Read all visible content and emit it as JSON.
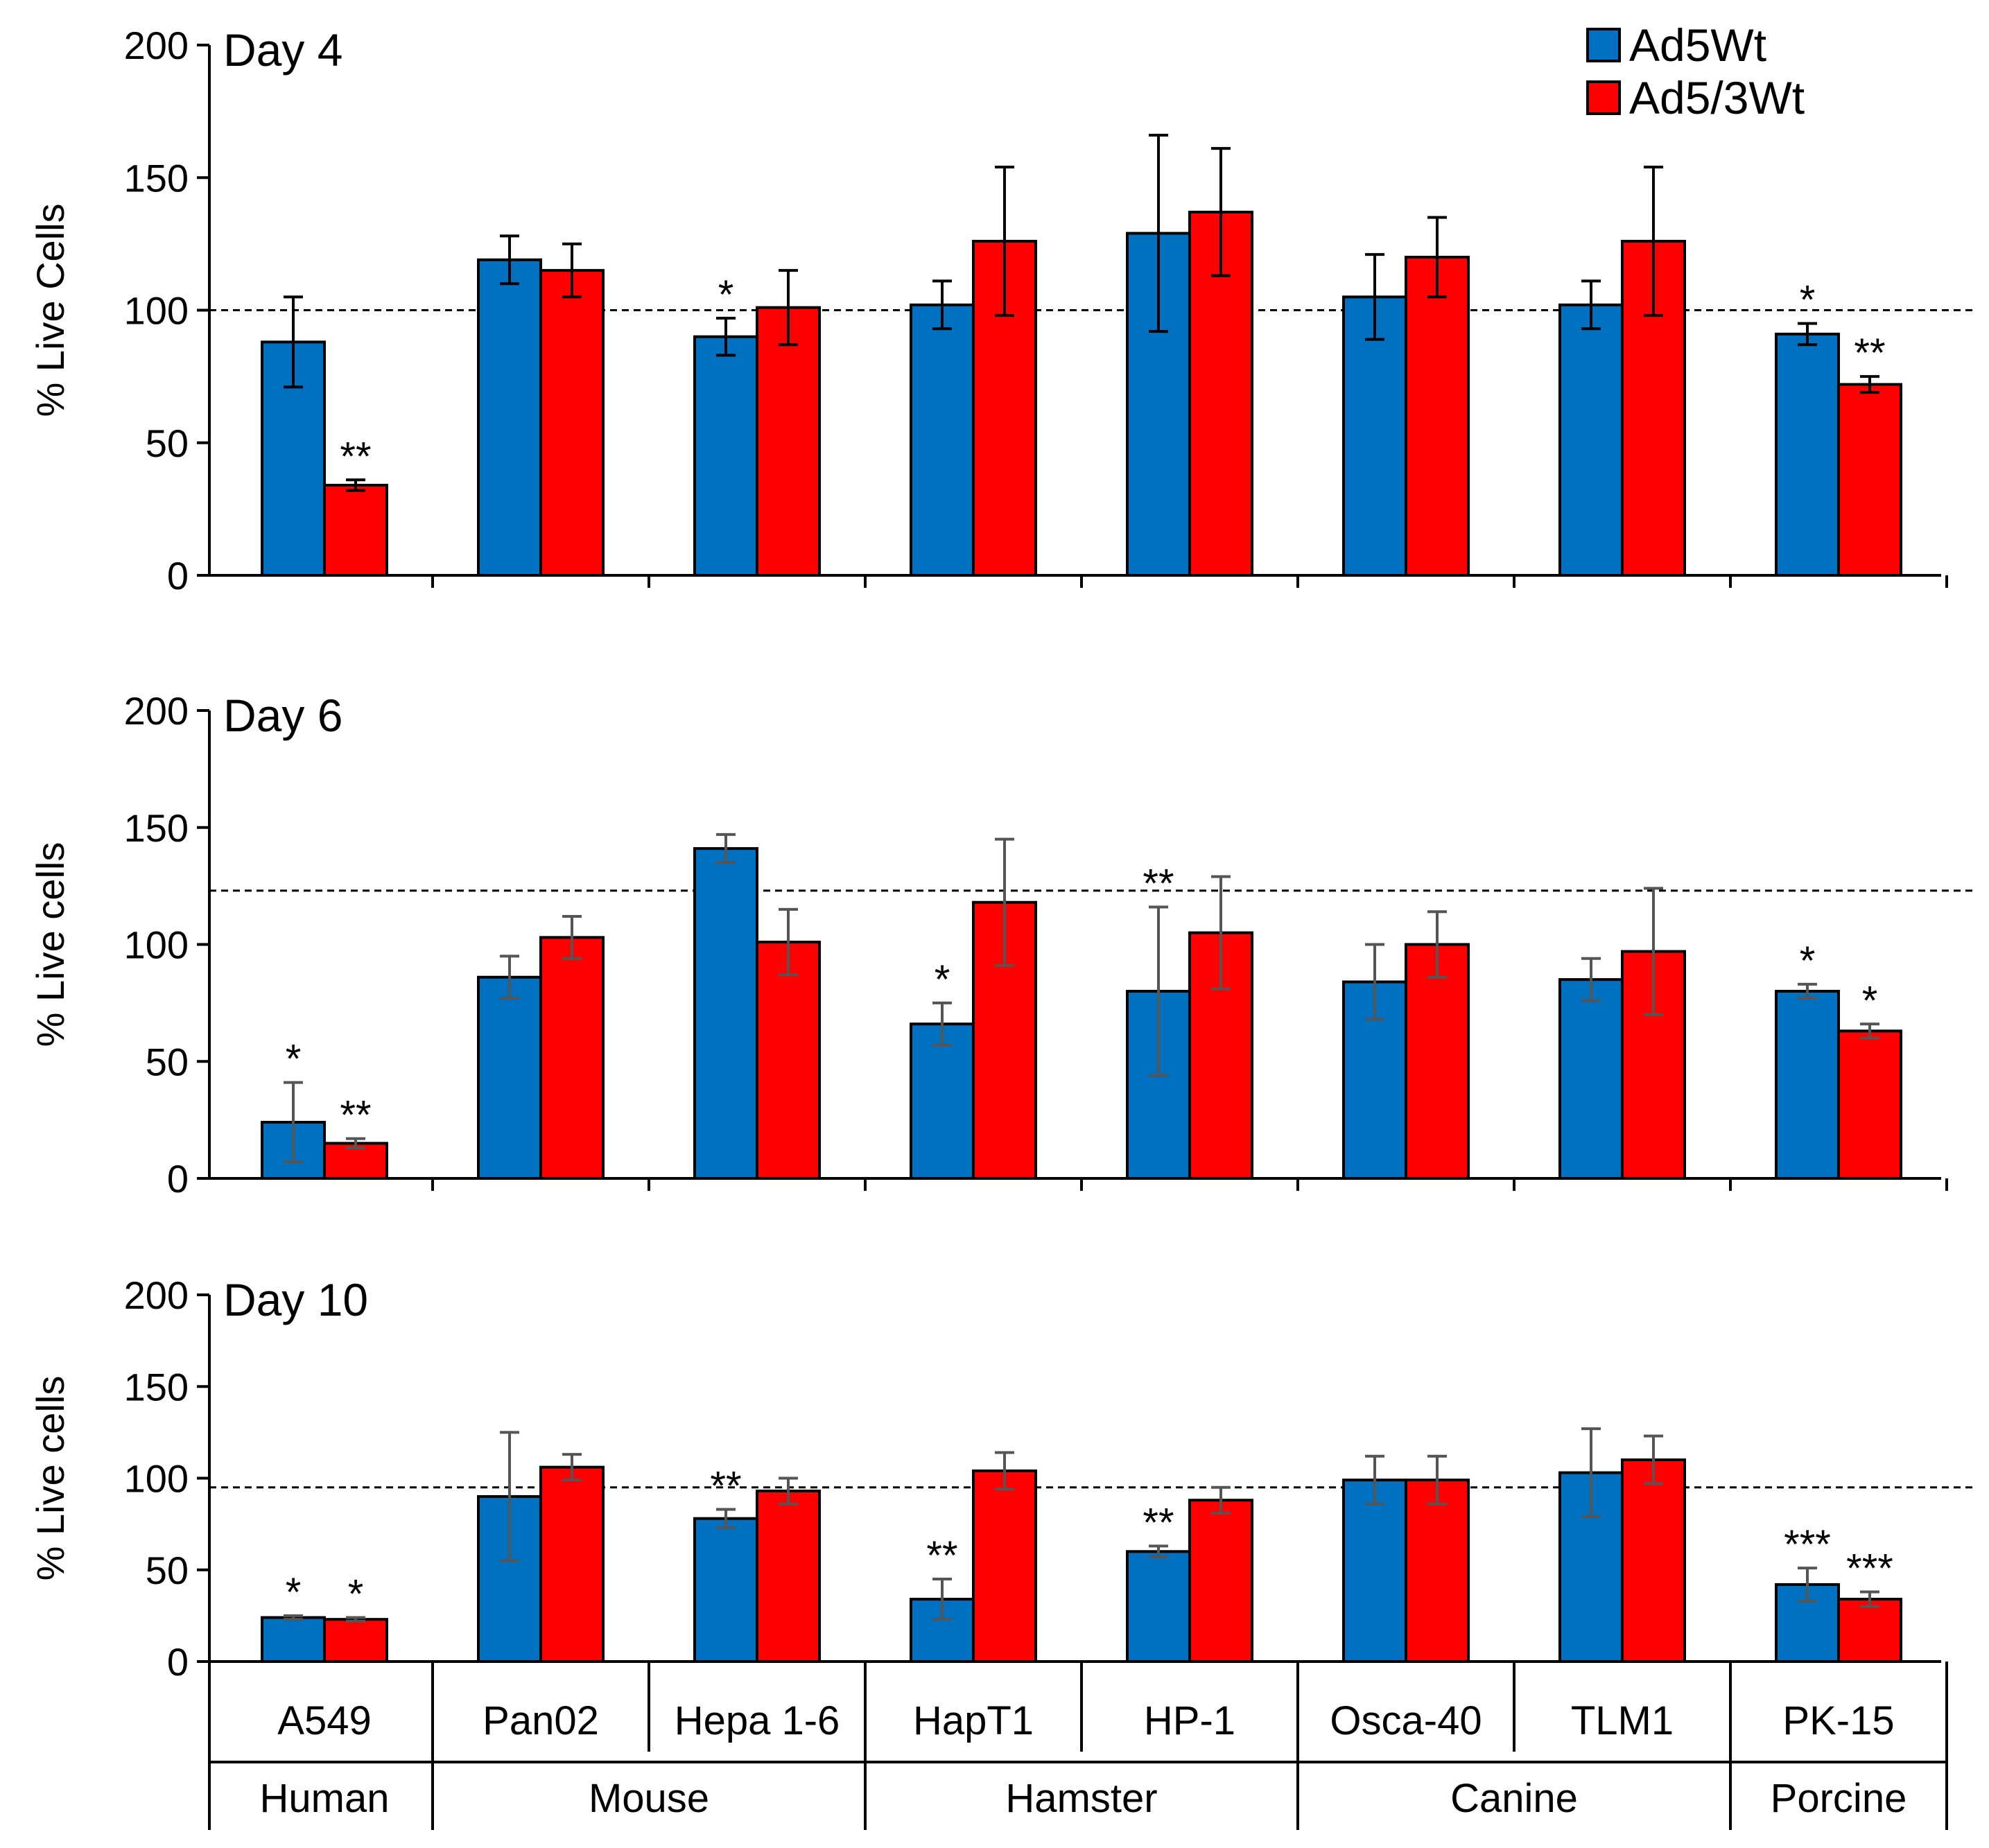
{
  "chart_data": {
    "type": "bar",
    "categories": [
      "A549",
      "Pan02",
      "Hepa 1-6",
      "HapT1",
      "HP-1",
      "Osca-40",
      "TLM1",
      "PK-15"
    ],
    "groups": [
      {
        "label": "Human",
        "span": [
          0,
          0
        ]
      },
      {
        "label": "Mouse",
        "span": [
          1,
          2
        ]
      },
      {
        "label": "Hamster",
        "span": [
          3,
          4
        ]
      },
      {
        "label": "Canine",
        "span": [
          5,
          6
        ]
      },
      {
        "label": "Porcine",
        "span": [
          7,
          7
        ]
      }
    ],
    "legend": [
      {
        "name": "Ad5Wt",
        "color": "#0070c0"
      },
      {
        "name": "Ad5/3Wt",
        "color": "#ff0000"
      }
    ],
    "panels": [
      {
        "title": "Day 4",
        "ylabel": "% Live Cells",
        "ylim": [
          0,
          200
        ],
        "yticks": [
          "0",
          "50",
          "100",
          "150",
          "200"
        ],
        "reference_line": 100,
        "error_bar_color": "#000000",
        "series": [
          {
            "name": "Ad5Wt",
            "values": [
              88,
              119,
              90,
              102,
              129,
              105,
              102,
              91
            ],
            "errors": [
              17,
              9,
              7,
              9,
              37,
              16,
              9,
              4
            ],
            "sig": [
              "",
              "",
              "*",
              "",
              "",
              "",
              "",
              "*"
            ]
          },
          {
            "name": "Ad5/3Wt",
            "values": [
              34,
              115,
              101,
              126,
              137,
              120,
              126,
              72
            ],
            "errors": [
              2,
              10,
              14,
              28,
              24,
              15,
              28,
              3
            ],
            "sig": [
              "**",
              "",
              "",
              "",
              "",
              "",
              "",
              "**"
            ]
          }
        ]
      },
      {
        "title": "Day 6",
        "ylabel": "% Live cells",
        "ylim": [
          0,
          200
        ],
        "yticks": [
          "0",
          "50",
          "100",
          "150",
          "200"
        ],
        "reference_line": 123,
        "error_bar_color": "#555555",
        "series": [
          {
            "name": "Ad5Wt",
            "values": [
              24,
              86,
              141,
              66,
              80,
              84,
              85,
              80
            ],
            "errors": [
              17,
              9,
              6,
              9,
              36,
              16,
              9,
              3
            ],
            "sig": [
              "*",
              "",
              "",
              "*",
              "**",
              "",
              "",
              "*"
            ]
          },
          {
            "name": "Ad5/3Wt",
            "values": [
              15,
              103,
              101,
              118,
              105,
              100,
              97,
              63
            ],
            "errors": [
              2,
              9,
              14,
              27,
              24,
              14,
              27,
              3
            ],
            "sig": [
              "**",
              "",
              "",
              "",
              "",
              "",
              "",
              "*"
            ]
          }
        ]
      },
      {
        "title": "Day 10",
        "ylabel": "% Live cells",
        "ylim": [
          0,
          200
        ],
        "yticks": [
          "0",
          "50",
          "100",
          "150",
          "200"
        ],
        "reference_line": 95,
        "error_bar_color": "#555555",
        "series": [
          {
            "name": "Ad5Wt",
            "values": [
              24,
              90,
              78,
              34,
              60,
              99,
              103,
              42
            ],
            "errors": [
              1,
              35,
              5,
              11,
              3,
              13,
              24,
              9
            ],
            "sig": [
              "*",
              "",
              "**",
              "**",
              "**",
              "",
              "",
              "***"
            ]
          },
          {
            "name": "Ad5/3Wt",
            "values": [
              23,
              106,
              93,
              104,
              88,
              99,
              110,
              34
            ],
            "errors": [
              1,
              7,
              7,
              10,
              7,
              13,
              13,
              4
            ],
            "sig": [
              "*",
              "",
              "",
              "",
              "",
              "",
              "",
              "***"
            ]
          }
        ]
      }
    ]
  }
}
